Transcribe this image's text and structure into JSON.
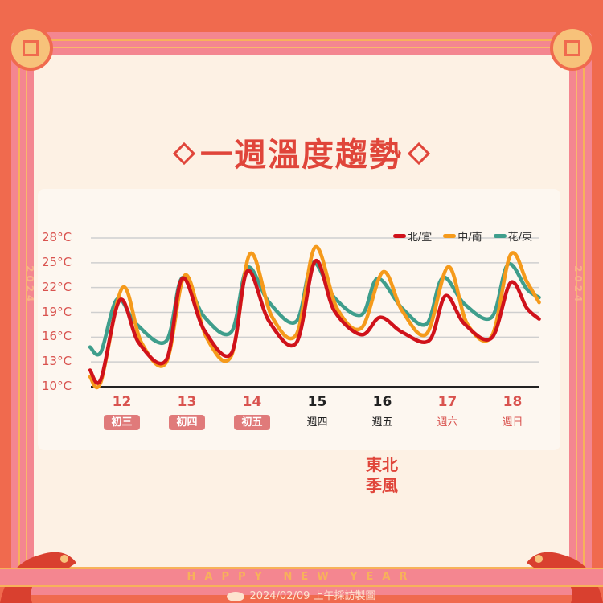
{
  "title": "一週溫度趨勢",
  "year_text": "2024",
  "annotation": [
    "東北",
    "季風"
  ],
  "banner": "HAPPY NEW YEAR",
  "footer": "2024/02/09 上午採訪製圖",
  "colors": {
    "accent": "#e0453a",
    "frame": "#f06a4e",
    "band": "#f48690",
    "gold": "#f7b25a"
  },
  "chart_data": {
    "type": "line",
    "title": "",
    "xlabel": "",
    "ylabel": "",
    "ylim": [
      10,
      28
    ],
    "xlim": [
      "02-12 00:00",
      "02-18 21:30"
    ],
    "grid": true,
    "legend_position": "top-right",
    "y_ticks": [
      "28°C",
      "25°C",
      "22°C",
      "19°C",
      "16°C",
      "13°C",
      "10°C"
    ],
    "y_tick_values": [
      28,
      25,
      22,
      19,
      16,
      13,
      10
    ],
    "days": [
      {
        "day": "12",
        "sub": "初三",
        "style": "holiday-badge"
      },
      {
        "day": "13",
        "sub": "初四",
        "style": "holiday-badge"
      },
      {
        "day": "14",
        "sub": "初五",
        "style": "holiday-badge"
      },
      {
        "day": "15",
        "sub": "週四",
        "style": "weekday"
      },
      {
        "day": "16",
        "sub": "週五",
        "style": "weekday"
      },
      {
        "day": "17",
        "sub": "週六",
        "style": "weekend"
      },
      {
        "day": "18",
        "sub": "週日",
        "style": "weekend"
      }
    ],
    "series": [
      {
        "name": "北/宜",
        "color": "#d0121b",
        "points": [
          [
            "02-12 00:00",
            12.0
          ],
          [
            "02-12 04:00",
            10.9
          ],
          [
            "02-12 11:00",
            20.5
          ],
          [
            "02-12 18:00",
            15.3
          ],
          [
            "02-13 04:00",
            13.2
          ],
          [
            "02-13 10:00",
            23.1
          ],
          [
            "02-13 18:00",
            16.9
          ],
          [
            "02-14 04:00",
            14.0
          ],
          [
            "02-14 10:00",
            24.0
          ],
          [
            "02-14 18:00",
            17.9
          ],
          [
            "02-15 04:00",
            15.3
          ],
          [
            "02-15 11:00",
            25.2
          ],
          [
            "02-15 18:00",
            19.2
          ],
          [
            "02-16 04:00",
            16.3
          ],
          [
            "02-16 11:00",
            18.4
          ],
          [
            "02-16 19:00",
            16.6
          ],
          [
            "02-17 05:00",
            15.6
          ],
          [
            "02-17 11:00",
            21.0
          ],
          [
            "02-17 18:00",
            17.6
          ],
          [
            "02-18 04:00",
            15.9
          ],
          [
            "02-18 11:00",
            22.6
          ],
          [
            "02-18 17:00",
            19.5
          ],
          [
            "02-18 21:30",
            18.2
          ]
        ]
      },
      {
        "name": "中/南",
        "color": "#f59a1b",
        "points": [
          [
            "02-12 00:00",
            11.2
          ],
          [
            "02-12 04:00",
            10.6
          ],
          [
            "02-12 12:00",
            22.0
          ],
          [
            "02-12 19:00",
            15.3
          ],
          [
            "02-13 04:00",
            12.9
          ],
          [
            "02-13 11:00",
            23.5
          ],
          [
            "02-13 19:00",
            15.9
          ],
          [
            "02-14 04:00",
            13.7
          ],
          [
            "02-14 11:00",
            26.1
          ],
          [
            "02-14 19:00",
            18.5
          ],
          [
            "02-15 04:00",
            16.3
          ],
          [
            "02-15 11:00",
            26.9
          ],
          [
            "02-15 19:00",
            19.5
          ],
          [
            "02-16 04:00",
            17.1
          ],
          [
            "02-16 12:00",
            23.9
          ],
          [
            "02-16 19:00",
            19.2
          ],
          [
            "02-17 04:00",
            16.4
          ],
          [
            "02-17 12:00",
            24.5
          ],
          [
            "02-17 19:00",
            17.6
          ],
          [
            "02-18 04:00",
            16.1
          ],
          [
            "02-18 11:00",
            26.0
          ],
          [
            "02-18 17:00",
            22.7
          ],
          [
            "02-18 21:30",
            20.2
          ]
        ]
      },
      {
        "name": "花/東",
        "color": "#3f9e8c",
        "points": [
          [
            "02-12 00:00",
            14.8
          ],
          [
            "02-12 04:00",
            14.2
          ],
          [
            "02-12 10:00",
            20.6
          ],
          [
            "02-12 17:00",
            17.6
          ],
          [
            "02-13 04:00",
            15.5
          ],
          [
            "02-13 10:00",
            23.2
          ],
          [
            "02-13 18:00",
            18.5
          ],
          [
            "02-14 04:00",
            16.6
          ],
          [
            "02-14 10:00",
            24.4
          ],
          [
            "02-14 18:00",
            20.2
          ],
          [
            "02-15 04:00",
            17.9
          ],
          [
            "02-15 10:00",
            25.0
          ],
          [
            "02-15 18:00",
            20.8
          ],
          [
            "02-16 04:00",
            18.7
          ],
          [
            "02-16 10:00",
            23.1
          ],
          [
            "02-16 19:00",
            19.5
          ],
          [
            "02-17 04:00",
            17.6
          ],
          [
            "02-17 10:00",
            23.2
          ],
          [
            "02-17 18:00",
            20.0
          ],
          [
            "02-18 04:00",
            18.4
          ],
          [
            "02-18 10:00",
            24.8
          ],
          [
            "02-18 17:00",
            21.8
          ],
          [
            "02-18 21:30",
            20.8
          ]
        ]
      }
    ]
  }
}
